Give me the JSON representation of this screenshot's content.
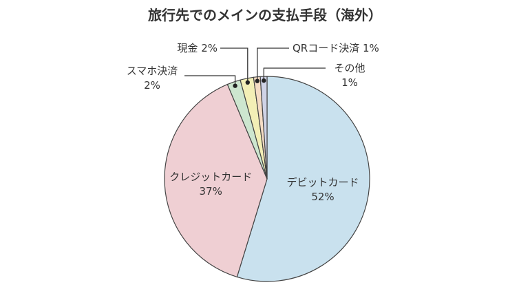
{
  "chart_data": {
    "type": "pie",
    "title": "旅行先でのメインの支払手段（海外）",
    "start": "top",
    "direction": "clockwise",
    "slices": [
      {
        "label": "デビットカード",
        "pct_text": "52%",
        "value": 52,
        "color": "#c9e1ee"
      },
      {
        "label": "クレジットカード",
        "pct_text": "37%",
        "value": 37,
        "color": "#efcfd3"
      },
      {
        "label": "スマホ決済",
        "pct_text": "2%",
        "value": 2,
        "color": "#cde6cf"
      },
      {
        "label": "現金",
        "pct_text": "2%",
        "value": 2,
        "color": "#f3efb6"
      },
      {
        "label": "QRコード決済",
        "pct_text": "1%",
        "value": 1,
        "color": "#f5dcc4"
      },
      {
        "label": "その他",
        "pct_text": "1%",
        "value": 1,
        "color": "#cfd3e6"
      }
    ]
  }
}
